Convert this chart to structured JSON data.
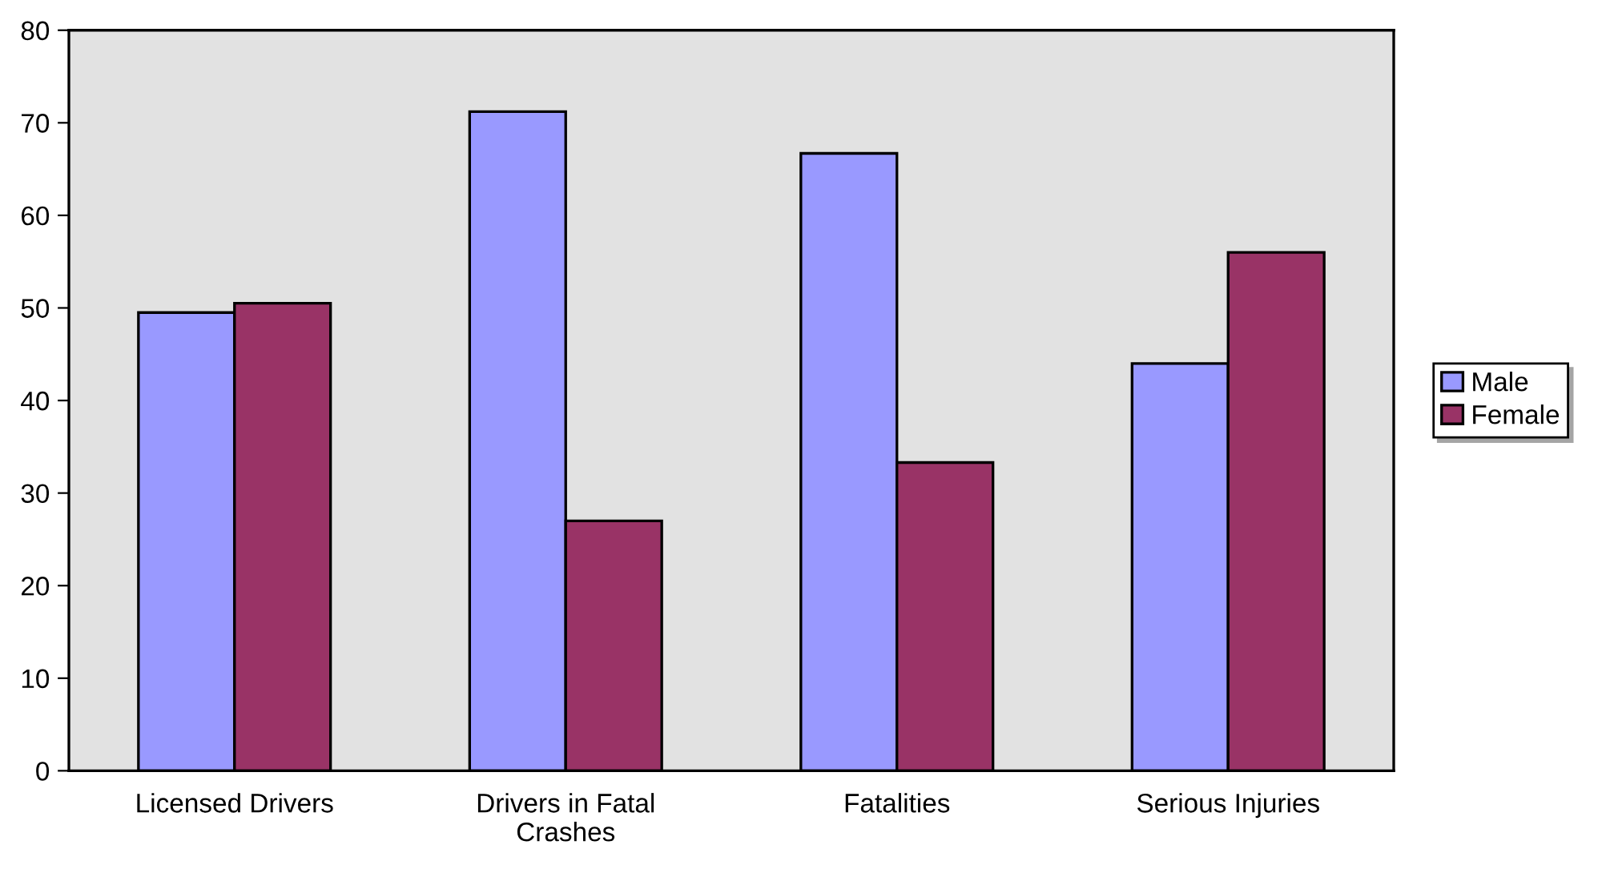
{
  "chart_data": {
    "type": "bar",
    "categories": [
      "Licensed Drivers",
      "Drivers in Fatal Crashes",
      "Fatalities",
      "Serious Injuries"
    ],
    "series": [
      {
        "name": "Male",
        "color": "#9999ff",
        "values": [
          49.5,
          71.2,
          66.7,
          44.0
        ]
      },
      {
        "name": "Female",
        "color": "#993366",
        "values": [
          50.5,
          27.0,
          33.3,
          56.0
        ]
      }
    ],
    "ylim": [
      0,
      80
    ],
    "yticks": [
      0,
      10,
      20,
      30,
      40,
      50,
      60,
      70,
      80
    ],
    "grid": false,
    "legend": "right"
  }
}
